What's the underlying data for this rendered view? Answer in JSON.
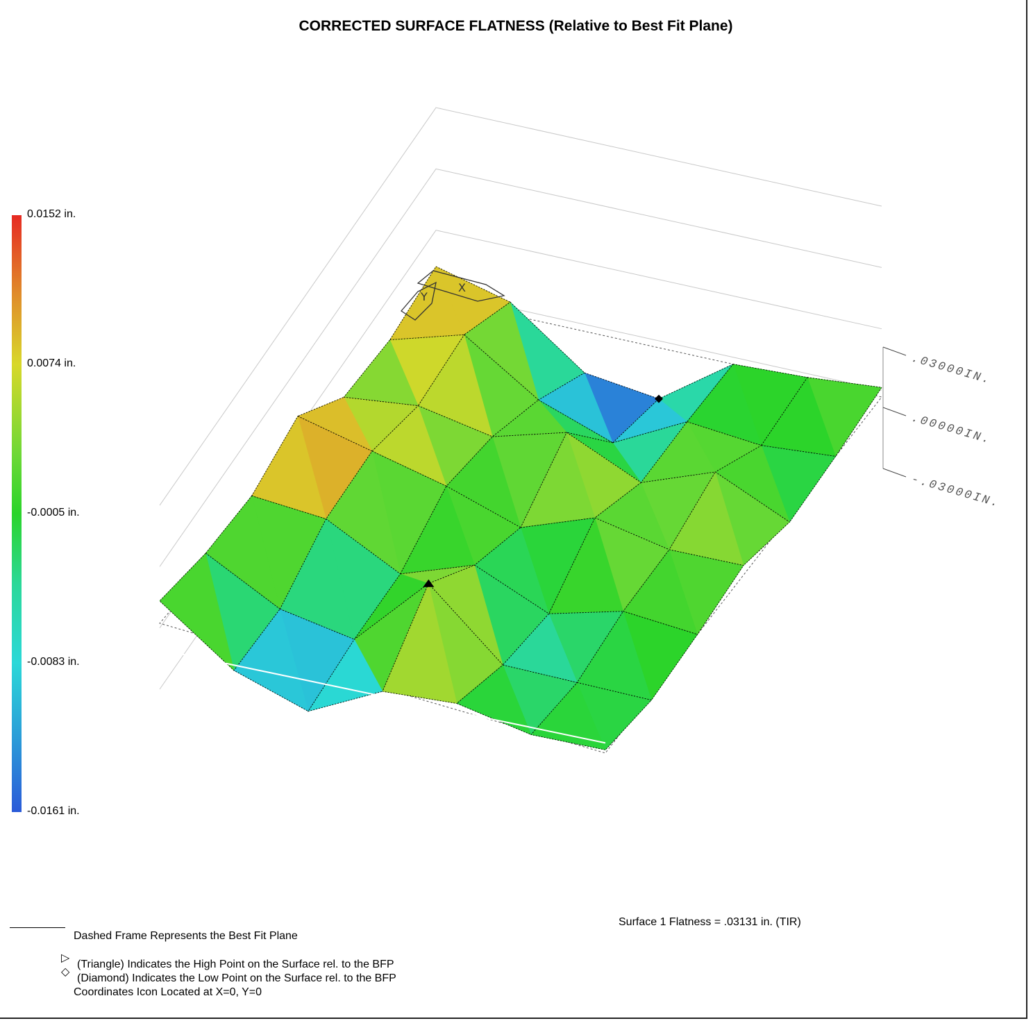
{
  "title": "CORRECTED SURFACE FLATNESS (Relative to Best Fit Plane)",
  "colorbar": {
    "labels": [
      "0.0152 in.",
      "0.0074 in.",
      "-0.0005 in.",
      "-0.0083 in.",
      "-0.0161 in."
    ],
    "colors": [
      "#e62a22",
      "#e08a2a",
      "#d8d82a",
      "#6ed836",
      "#2ad42a",
      "#2ad89a",
      "#2ad8d8",
      "#2a9ad8",
      "#2a5ad8"
    ]
  },
  "z_axis_labels": [
    ".03000IN.",
    ".00000IN.",
    "-.03000IN."
  ],
  "axis_icon": {
    "x_label": "X",
    "y_label": "Y"
  },
  "chart_data": {
    "type": "heatmap",
    "title": "CORRECTED SURFACE FLATNESS (Relative to Best Fit Plane)",
    "unit": "in.",
    "zlim": [
      -0.0161,
      0.0152
    ],
    "z_ticks": [
      0.03,
      0.0,
      -0.03
    ],
    "grid": true,
    "colorbar_ticks": [
      0.0152,
      0.0074,
      -0.0005,
      -0.0083,
      -0.0161
    ],
    "rows": 7,
    "cols": 7,
    "z_values": [
      [
        0.01,
        0.004,
        -0.013,
        -0.016,
        0.0,
        0.001,
        0.003
      ],
      [
        0.004,
        0.011,
        -0.004,
        -0.012,
        0.0,
        -0.002,
        0.0
      ],
      [
        0.003,
        0.006,
        0.002,
        0.009,
        -0.001,
        0.008,
        -0.002
      ],
      [
        0.014,
        0.009,
        0.004,
        -0.003,
        0.006,
        0.002,
        0.003
      ],
      [
        0.006,
        0.005,
        -0.006,
        0.003,
        -0.006,
        0.001,
        0.0
      ],
      [
        0.005,
        -0.006,
        -0.009,
        0.015,
        -0.004,
        -0.003,
        -0.002
      ],
      [
        0.007,
        -0.008,
        -0.014,
        -0.001,
        0.002,
        -0.001,
        0.001
      ]
    ],
    "high_point_value": 0.0152,
    "low_point_value": -0.0161,
    "flatness_tir": 0.03131
  },
  "flatness_text": "Surface  1 Flatness = .03131 in. (TIR)",
  "legend": {
    "dashed_frame": "Dashed Frame Represents the Best Fit Plane",
    "triangle_icon": "▷",
    "diamond_icon": "◇",
    "triangle": "(Triangle) Indicates the High Point on the Surface rel. to the BFP",
    "diamond": "(Diamond) Indicates the Low Point on the Surface rel. to the BFP",
    "coords": "Coordinates Icon Located at X=0, Y=0"
  }
}
